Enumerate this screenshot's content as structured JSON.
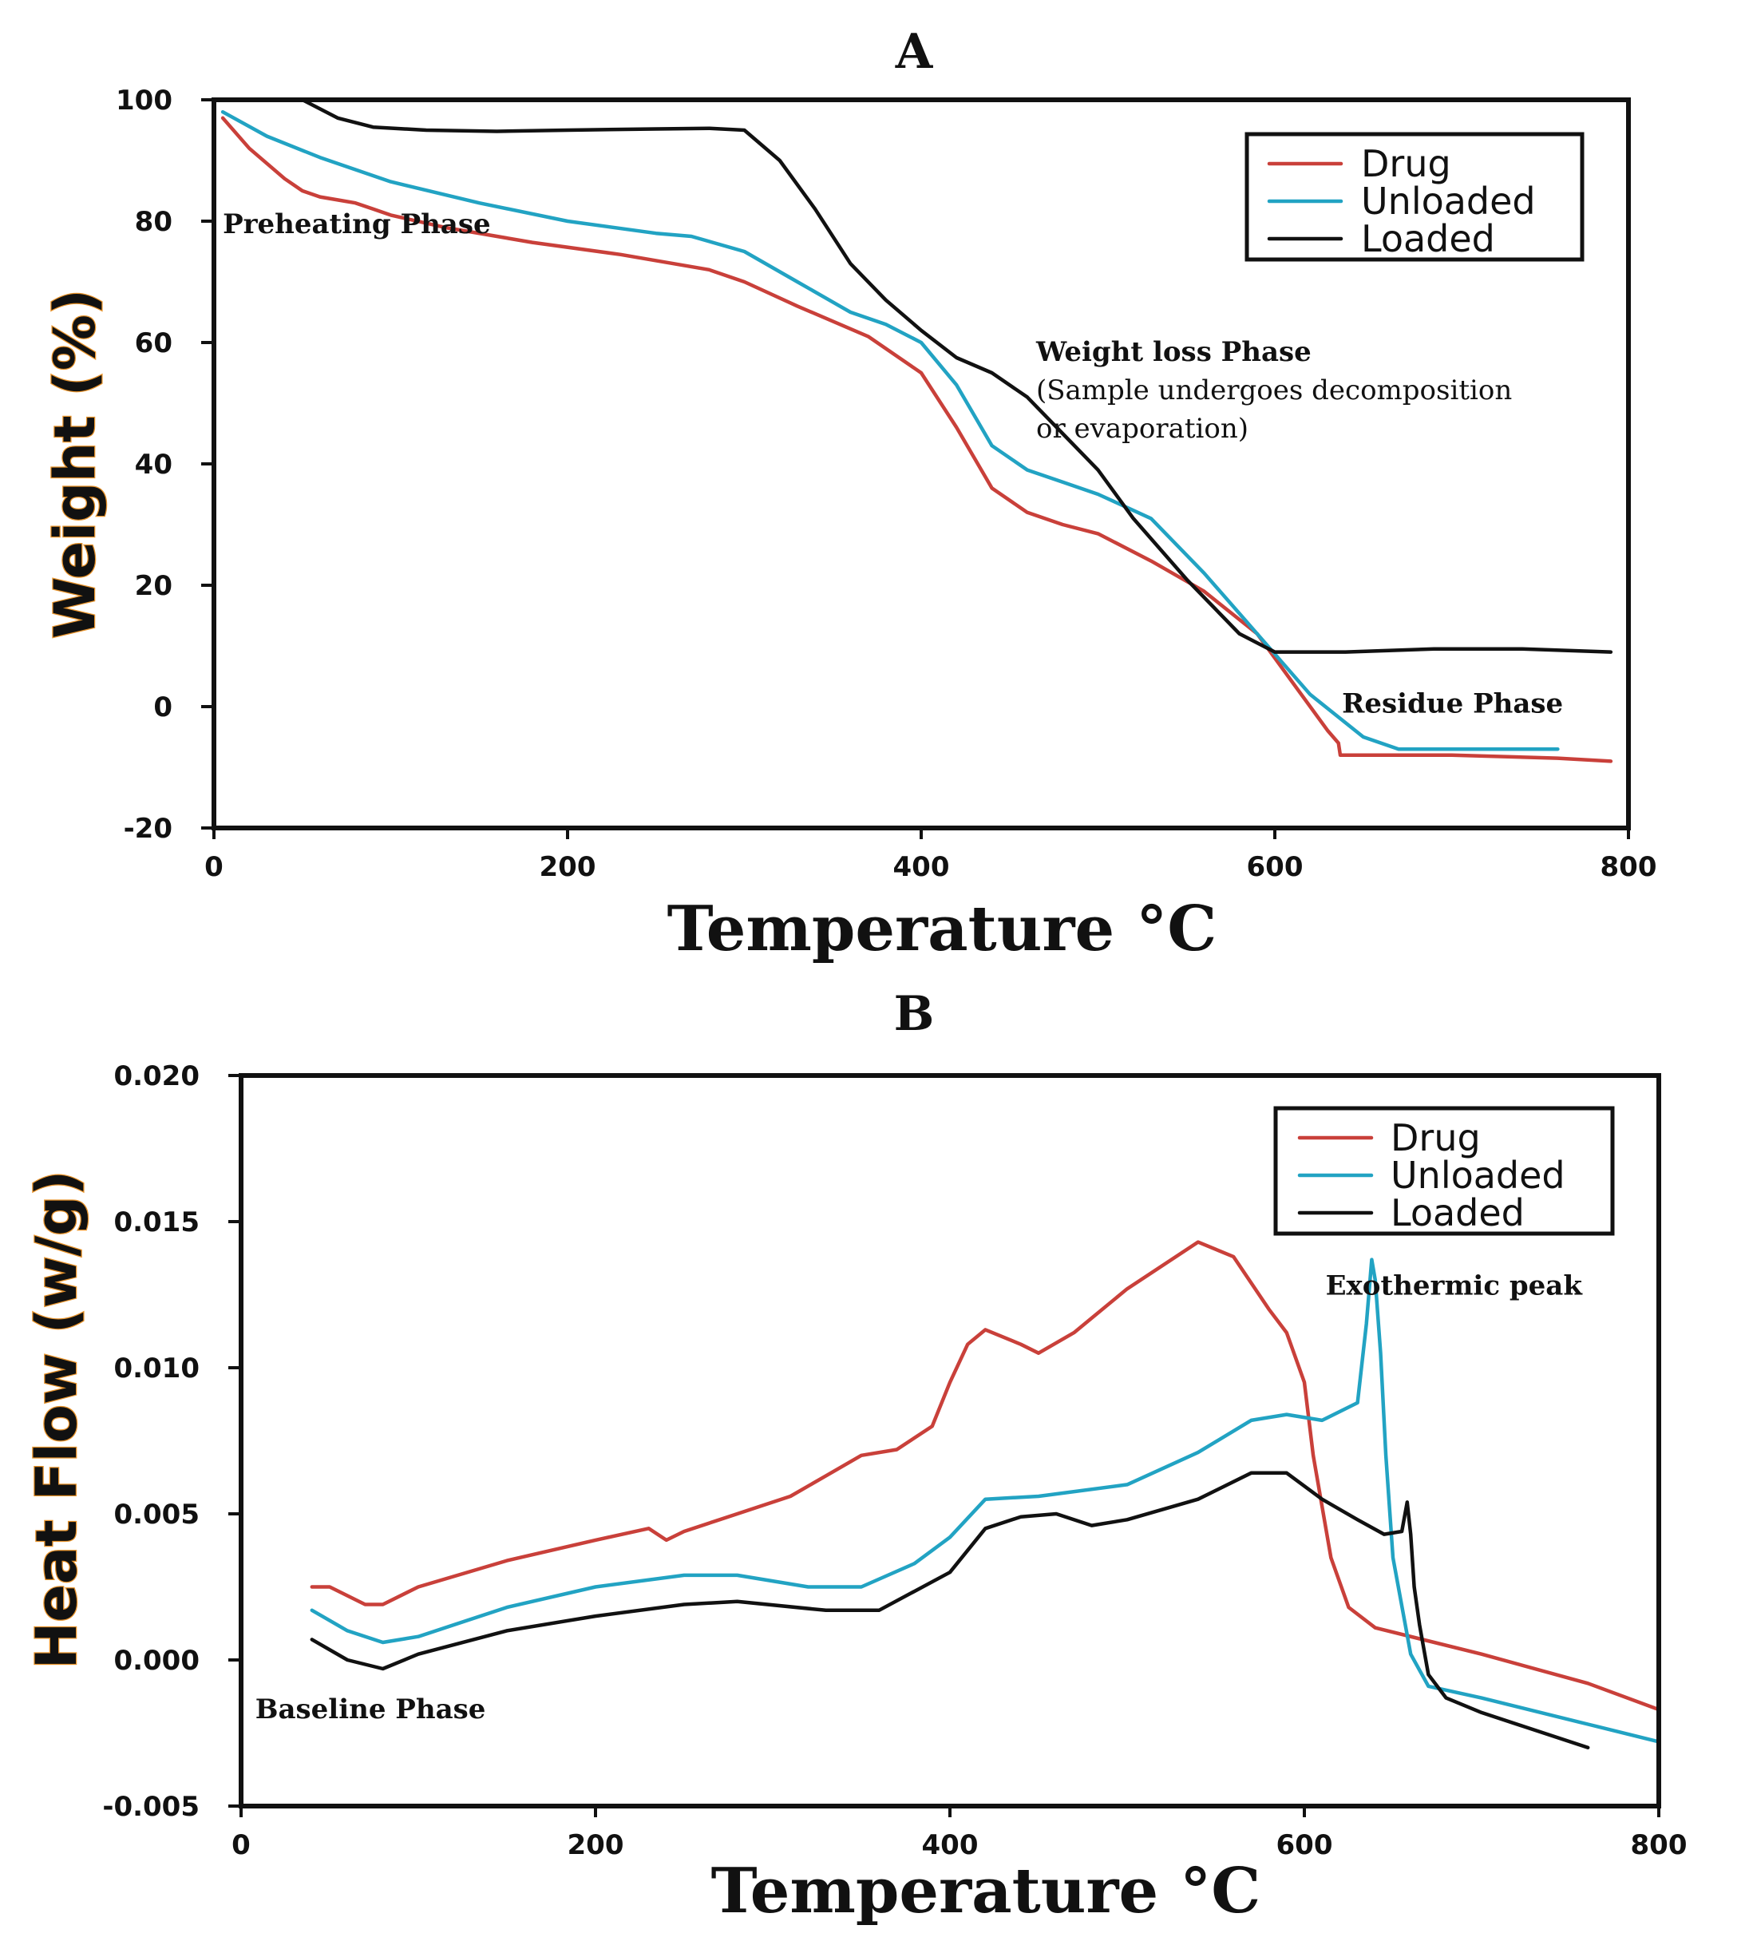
{
  "chart_data": [
    {
      "type": "line",
      "panel_label": "A",
      "xlabel": "Temperature °C",
      "ylabel": "Weight (%)",
      "xlim": [
        0,
        800
      ],
      "ylim": [
        -20,
        100
      ],
      "xticks": [
        0,
        200,
        400,
        600,
        800
      ],
      "yticks": [
        -20,
        0,
        20,
        40,
        60,
        80,
        100
      ],
      "grid": false,
      "legend_position": "top-right",
      "annotations": [
        {
          "id": "preheating",
          "lines": [
            "Preheating Phase"
          ],
          "x": 5,
          "y": 78,
          "bold": true
        },
        {
          "id": "weightloss",
          "lines": [
            "Weight loss Phase",
            "(Sample undergoes decomposition",
            "or evaporation)"
          ],
          "x": 465,
          "y": 57,
          "bold": true
        },
        {
          "id": "residue",
          "lines": [
            "Residue Phase"
          ],
          "x": 638,
          "y": -1,
          "bold": true
        }
      ],
      "series": [
        {
          "name": "Drug",
          "color": "#c9403a",
          "x": [
            5,
            20,
            40,
            50,
            60,
            70,
            80,
            90,
            100,
            130,
            180,
            230,
            280,
            300,
            330,
            370,
            400,
            420,
            440,
            460,
            480,
            500,
            530,
            560,
            590,
            610,
            630,
            636,
            637,
            660,
            700,
            760,
            790
          ],
          "y": [
            97,
            92,
            87,
            85,
            84,
            83.5,
            83,
            82,
            81,
            79,
            76.5,
            74.5,
            72,
            70,
            66,
            61,
            55,
            46,
            36,
            32,
            30,
            28.5,
            24,
            19,
            12,
            4,
            -4,
            -6,
            -8,
            -8,
            -8,
            -8.5,
            -9
          ]
        },
        {
          "name": "Unloaded",
          "color": "#22a3c3",
          "x": [
            5,
            30,
            60,
            100,
            150,
            200,
            250,
            270,
            300,
            330,
            360,
            380,
            400,
            420,
            440,
            460,
            480,
            500,
            530,
            560,
            590,
            620,
            650,
            670,
            700,
            760
          ],
          "y": [
            98,
            94,
            90.5,
            86.5,
            83,
            80,
            78,
            77.5,
            75,
            70,
            65,
            63,
            60,
            53,
            43,
            39,
            37,
            35,
            31,
            22,
            12,
            2,
            -5,
            -7,
            -7,
            -7
          ]
        },
        {
          "name": "Loaded",
          "color": "#111111",
          "x": [
            5,
            30,
            50,
            70,
            90,
            120,
            160,
            200,
            250,
            280,
            300,
            320,
            340,
            360,
            380,
            400,
            420,
            440,
            460,
            480,
            500,
            520,
            550,
            580,
            600,
            620,
            640,
            690,
            740,
            790
          ],
          "y": [
            100,
            100,
            100,
            97,
            95.5,
            95,
            94.8,
            95,
            95.2,
            95.3,
            95,
            90,
            82,
            73,
            67,
            62,
            57.5,
            55,
            51,
            45,
            39,
            31,
            21,
            12,
            9,
            9,
            9,
            9.5,
            9.5,
            9
          ]
        }
      ]
    },
    {
      "type": "line",
      "panel_label": "B",
      "xlabel": "Temperature °C",
      "ylabel": "Heat Flow (w/g)",
      "xlim": [
        0,
        800
      ],
      "ylim": [
        -0.005,
        0.02
      ],
      "xticks": [
        0,
        200,
        400,
        600,
        800
      ],
      "yticks": [
        -0.005,
        0.0,
        0.005,
        0.01,
        0.015,
        0.02
      ],
      "ytick_labels": [
        "-0.005",
        "0.000",
        "0.005",
        "0.010",
        "0.015",
        "0.020"
      ],
      "grid": false,
      "legend_position": "top-right",
      "annotations": [
        {
          "id": "exothermic",
          "lines": [
            "Exothermic peak"
          ],
          "x": 612,
          "y": 0.0125,
          "bold": true
        },
        {
          "id": "baseline",
          "lines": [
            "Baseline Phase"
          ],
          "x": 8,
          "y": -0.002,
          "bold": true
        }
      ],
      "series": [
        {
          "name": "Drug",
          "color": "#c9403a",
          "x": [
            40,
            50,
            60,
            70,
            80,
            100,
            150,
            200,
            230,
            240,
            250,
            280,
            310,
            330,
            350,
            370,
            390,
            400,
            410,
            420,
            440,
            450,
            470,
            500,
            540,
            560,
            580,
            590,
            600,
            605,
            615,
            625,
            640,
            700,
            760,
            800
          ],
          "y": [
            0.0025,
            0.0025,
            0.0022,
            0.0019,
            0.0019,
            0.0025,
            0.0034,
            0.0041,
            0.0045,
            0.0041,
            0.0044,
            0.005,
            0.0056,
            0.0063,
            0.007,
            0.0072,
            0.008,
            0.0095,
            0.0108,
            0.0113,
            0.0108,
            0.0105,
            0.0112,
            0.0127,
            0.0143,
            0.0138,
            0.012,
            0.0112,
            0.0095,
            0.007,
            0.0035,
            0.0018,
            0.0011,
            0.0002,
            -0.0008,
            -0.0017
          ]
        },
        {
          "name": "Unloaded",
          "color": "#22a3c3",
          "x": [
            40,
            60,
            80,
            100,
            150,
            200,
            250,
            280,
            320,
            350,
            380,
            400,
            420,
            450,
            500,
            540,
            570,
            590,
            610,
            630,
            635,
            638,
            640,
            643,
            646,
            650,
            660,
            670,
            700,
            760,
            800
          ],
          "y": [
            0.0017,
            0.001,
            0.0006,
            0.0008,
            0.0018,
            0.0025,
            0.0029,
            0.0029,
            0.0025,
            0.0025,
            0.0033,
            0.0042,
            0.0055,
            0.0056,
            0.006,
            0.0071,
            0.0082,
            0.0084,
            0.0082,
            0.0088,
            0.0115,
            0.0137,
            0.013,
            0.0105,
            0.007,
            0.0035,
            0.0002,
            -0.0009,
            -0.0013,
            -0.0022,
            -0.0028
          ]
        },
        {
          "name": "Loaded",
          "color": "#111111",
          "x": [
            40,
            60,
            80,
            100,
            150,
            200,
            250,
            280,
            330,
            360,
            400,
            420,
            440,
            460,
            480,
            500,
            540,
            570,
            590,
            610,
            630,
            645,
            655,
            658,
            660,
            662,
            665,
            670,
            680,
            700,
            760
          ],
          "y": [
            0.0007,
            0.0,
            -0.0003,
            0.0002,
            0.001,
            0.0015,
            0.0019,
            0.002,
            0.0017,
            0.0017,
            0.003,
            0.0045,
            0.0049,
            0.005,
            0.0046,
            0.0048,
            0.0055,
            0.0064,
            0.0064,
            0.0055,
            0.0048,
            0.0043,
            0.0044,
            0.0054,
            0.0043,
            0.0025,
            0.0012,
            -0.0005,
            -0.0013,
            -0.0018,
            -0.003
          ]
        }
      ]
    }
  ]
}
